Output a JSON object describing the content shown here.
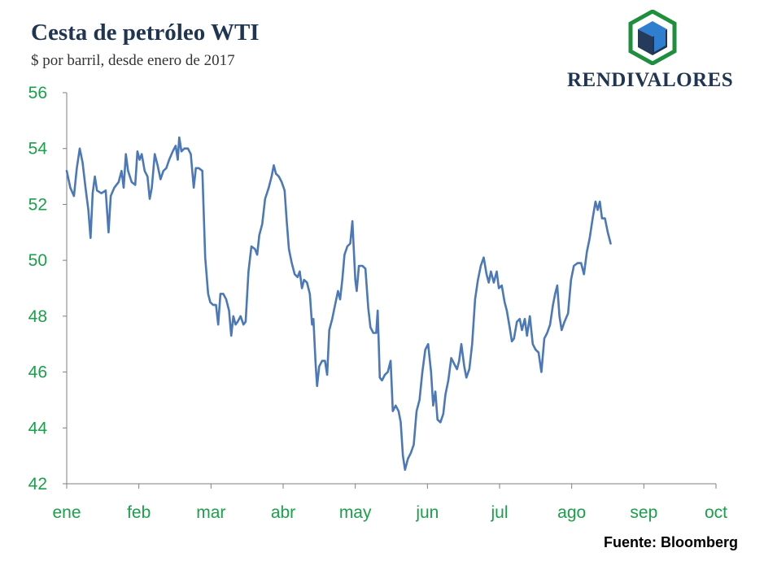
{
  "header": {
    "title": "Cesta de petróleo WTI",
    "subtitle": "$ por barril, desde enero de 2017"
  },
  "logo": {
    "text": "RENDIVALORES"
  },
  "footer": {
    "source": "Fuente: Bloomberg"
  },
  "colors": {
    "line": "#4a78b8",
    "tick_label": "#1aa04a",
    "title": "#1f3552",
    "axis": "#7f7f7f"
  },
  "chart_data": {
    "type": "line",
    "title": "Cesta de petróleo WTI",
    "subtitle": "$ por barril, desde enero de 2017",
    "xlabel": "",
    "ylabel": "",
    "ylim": [
      42,
      56
    ],
    "yticks": [
      42,
      44,
      46,
      48,
      50,
      52,
      54,
      56
    ],
    "xticks": [
      "ene",
      "feb",
      "mar",
      "abr",
      "may",
      "jun",
      "jul",
      "ago",
      "sep",
      "oct"
    ],
    "xrange_months": [
      0,
      9
    ],
    "grid": false,
    "legend": "none",
    "series": [
      {
        "points": [
          [
            0.0,
            53.2
          ],
          [
            0.05,
            52.6
          ],
          [
            0.1,
            52.3
          ],
          [
            0.14,
            53.3
          ],
          [
            0.18,
            54.0
          ],
          [
            0.22,
            53.5
          ],
          [
            0.26,
            52.6
          ],
          [
            0.3,
            51.8
          ],
          [
            0.33,
            50.8
          ],
          [
            0.36,
            52.4
          ],
          [
            0.39,
            53.0
          ],
          [
            0.42,
            52.5
          ],
          [
            0.48,
            52.4
          ],
          [
            0.54,
            52.5
          ],
          [
            0.58,
            51.0
          ],
          [
            0.61,
            52.3
          ],
          [
            0.66,
            52.6
          ],
          [
            0.72,
            52.8
          ],
          [
            0.76,
            53.2
          ],
          [
            0.79,
            52.6
          ],
          [
            0.82,
            53.8
          ],
          [
            0.85,
            53.2
          ],
          [
            0.9,
            52.8
          ],
          [
            0.95,
            52.7
          ],
          [
            0.98,
            53.9
          ],
          [
            1.01,
            53.6
          ],
          [
            1.04,
            53.8
          ],
          [
            1.08,
            53.2
          ],
          [
            1.12,
            53.0
          ],
          [
            1.15,
            52.2
          ],
          [
            1.18,
            52.6
          ],
          [
            1.22,
            53.8
          ],
          [
            1.26,
            53.4
          ],
          [
            1.3,
            52.9
          ],
          [
            1.34,
            53.2
          ],
          [
            1.38,
            53.3
          ],
          [
            1.42,
            53.6
          ],
          [
            1.47,
            53.9
          ],
          [
            1.51,
            54.1
          ],
          [
            1.54,
            53.6
          ],
          [
            1.56,
            54.4
          ],
          [
            1.59,
            53.9
          ],
          [
            1.63,
            54.0
          ],
          [
            1.68,
            54.0
          ],
          [
            1.72,
            53.8
          ],
          [
            1.76,
            52.6
          ],
          [
            1.79,
            53.3
          ],
          [
            1.83,
            53.3
          ],
          [
            1.88,
            53.2
          ],
          [
            1.92,
            50.1
          ],
          [
            1.96,
            48.8
          ],
          [
            1.99,
            48.5
          ],
          [
            2.03,
            48.4
          ],
          [
            2.07,
            48.4
          ],
          [
            2.1,
            47.7
          ],
          [
            2.13,
            48.8
          ],
          [
            2.17,
            48.8
          ],
          [
            2.21,
            48.6
          ],
          [
            2.25,
            48.2
          ],
          [
            2.28,
            47.3
          ],
          [
            2.31,
            48.0
          ],
          [
            2.34,
            47.7
          ],
          [
            2.37,
            47.8
          ],
          [
            2.41,
            48.0
          ],
          [
            2.45,
            47.7
          ],
          [
            2.48,
            47.8
          ],
          [
            2.52,
            49.6
          ],
          [
            2.56,
            50.5
          ],
          [
            2.61,
            50.4
          ],
          [
            2.64,
            50.2
          ],
          [
            2.67,
            50.9
          ],
          [
            2.71,
            51.3
          ],
          [
            2.75,
            52.2
          ],
          [
            2.8,
            52.6
          ],
          [
            2.84,
            53.0
          ],
          [
            2.87,
            53.4
          ],
          [
            2.9,
            53.1
          ],
          [
            2.94,
            53.0
          ],
          [
            2.98,
            52.8
          ],
          [
            3.02,
            52.5
          ],
          [
            3.05,
            51.4
          ],
          [
            3.08,
            50.4
          ],
          [
            3.12,
            49.9
          ],
          [
            3.16,
            49.5
          ],
          [
            3.2,
            49.4
          ],
          [
            3.23,
            49.6
          ],
          [
            3.26,
            49.0
          ],
          [
            3.29,
            49.3
          ],
          [
            3.33,
            49.2
          ],
          [
            3.37,
            48.8
          ],
          [
            3.4,
            47.7
          ],
          [
            3.42,
            47.9
          ],
          [
            3.45,
            46.3
          ],
          [
            3.47,
            45.5
          ],
          [
            3.5,
            46.2
          ],
          [
            3.54,
            46.4
          ],
          [
            3.58,
            46.4
          ],
          [
            3.61,
            45.9
          ],
          [
            3.64,
            47.5
          ],
          [
            3.68,
            47.9
          ],
          [
            3.72,
            48.4
          ],
          [
            3.76,
            48.9
          ],
          [
            3.79,
            48.6
          ],
          [
            3.82,
            49.3
          ],
          [
            3.85,
            50.2
          ],
          [
            3.89,
            50.5
          ],
          [
            3.93,
            50.6
          ],
          [
            3.96,
            51.4
          ],
          [
            4.0,
            49.3
          ],
          [
            4.02,
            48.9
          ],
          [
            4.05,
            49.8
          ],
          [
            4.1,
            49.8
          ],
          [
            4.14,
            49.7
          ],
          [
            4.18,
            48.3
          ],
          [
            4.21,
            47.6
          ],
          [
            4.25,
            47.4
          ],
          [
            4.29,
            47.4
          ],
          [
            4.31,
            48.2
          ],
          [
            4.34,
            45.8
          ],
          [
            4.37,
            45.7
          ],
          [
            4.41,
            45.9
          ],
          [
            4.45,
            46.0
          ],
          [
            4.49,
            46.4
          ],
          [
            4.52,
            44.6
          ],
          [
            4.56,
            44.8
          ],
          [
            4.6,
            44.6
          ],
          [
            4.63,
            44.2
          ],
          [
            4.66,
            43.0
          ],
          [
            4.69,
            42.5
          ],
          [
            4.73,
            42.9
          ],
          [
            4.77,
            43.1
          ],
          [
            4.81,
            43.4
          ],
          [
            4.85,
            44.6
          ],
          [
            4.89,
            45.0
          ],
          [
            4.93,
            46.0
          ],
          [
            4.97,
            46.8
          ],
          [
            5.01,
            47.0
          ],
          [
            5.05,
            46.0
          ],
          [
            5.08,
            44.8
          ],
          [
            5.11,
            45.3
          ],
          [
            5.14,
            44.3
          ],
          [
            5.18,
            44.2
          ],
          [
            5.22,
            44.5
          ],
          [
            5.25,
            45.2
          ],
          [
            5.29,
            45.7
          ],
          [
            5.33,
            46.5
          ],
          [
            5.37,
            46.3
          ],
          [
            5.41,
            46.1
          ],
          [
            5.44,
            46.4
          ],
          [
            5.47,
            47.0
          ],
          [
            5.51,
            46.2
          ],
          [
            5.54,
            45.8
          ],
          [
            5.58,
            46.1
          ],
          [
            5.62,
            47.0
          ],
          [
            5.66,
            48.6
          ],
          [
            5.7,
            49.3
          ],
          [
            5.74,
            49.8
          ],
          [
            5.78,
            50.1
          ],
          [
            5.82,
            49.5
          ],
          [
            5.85,
            49.2
          ],
          [
            5.88,
            49.6
          ],
          [
            5.92,
            49.2
          ],
          [
            5.96,
            49.6
          ],
          [
            5.99,
            49.0
          ],
          [
            6.03,
            49.1
          ],
          [
            6.07,
            48.5
          ],
          [
            6.1,
            48.2
          ],
          [
            6.14,
            47.6
          ],
          [
            6.17,
            47.1
          ],
          [
            6.2,
            47.2
          ],
          [
            6.24,
            47.8
          ],
          [
            6.28,
            47.9
          ],
          [
            6.31,
            47.5
          ],
          [
            6.35,
            47.9
          ],
          [
            6.38,
            47.3
          ],
          [
            6.42,
            48.0
          ],
          [
            6.46,
            47.0
          ],
          [
            6.5,
            46.8
          ],
          [
            6.54,
            46.7
          ],
          [
            6.58,
            46.0
          ],
          [
            6.62,
            47.2
          ],
          [
            6.66,
            47.4
          ],
          [
            6.7,
            47.7
          ],
          [
            6.74,
            48.4
          ],
          [
            6.77,
            48.8
          ],
          [
            6.8,
            49.1
          ],
          [
            6.83,
            48.0
          ],
          [
            6.86,
            47.5
          ],
          [
            6.9,
            47.8
          ],
          [
            6.95,
            48.1
          ],
          [
            6.99,
            49.3
          ],
          [
            7.03,
            49.8
          ],
          [
            7.08,
            49.9
          ],
          [
            7.13,
            49.9
          ],
          [
            7.17,
            49.5
          ],
          [
            7.21,
            50.3
          ],
          [
            7.25,
            50.8
          ],
          [
            7.29,
            51.5
          ],
          [
            7.33,
            52.1
          ],
          [
            7.36,
            51.8
          ],
          [
            7.39,
            52.1
          ],
          [
            7.42,
            51.5
          ],
          [
            7.46,
            51.5
          ],
          [
            7.5,
            51.0
          ],
          [
            7.54,
            50.6
          ]
        ]
      }
    ]
  }
}
